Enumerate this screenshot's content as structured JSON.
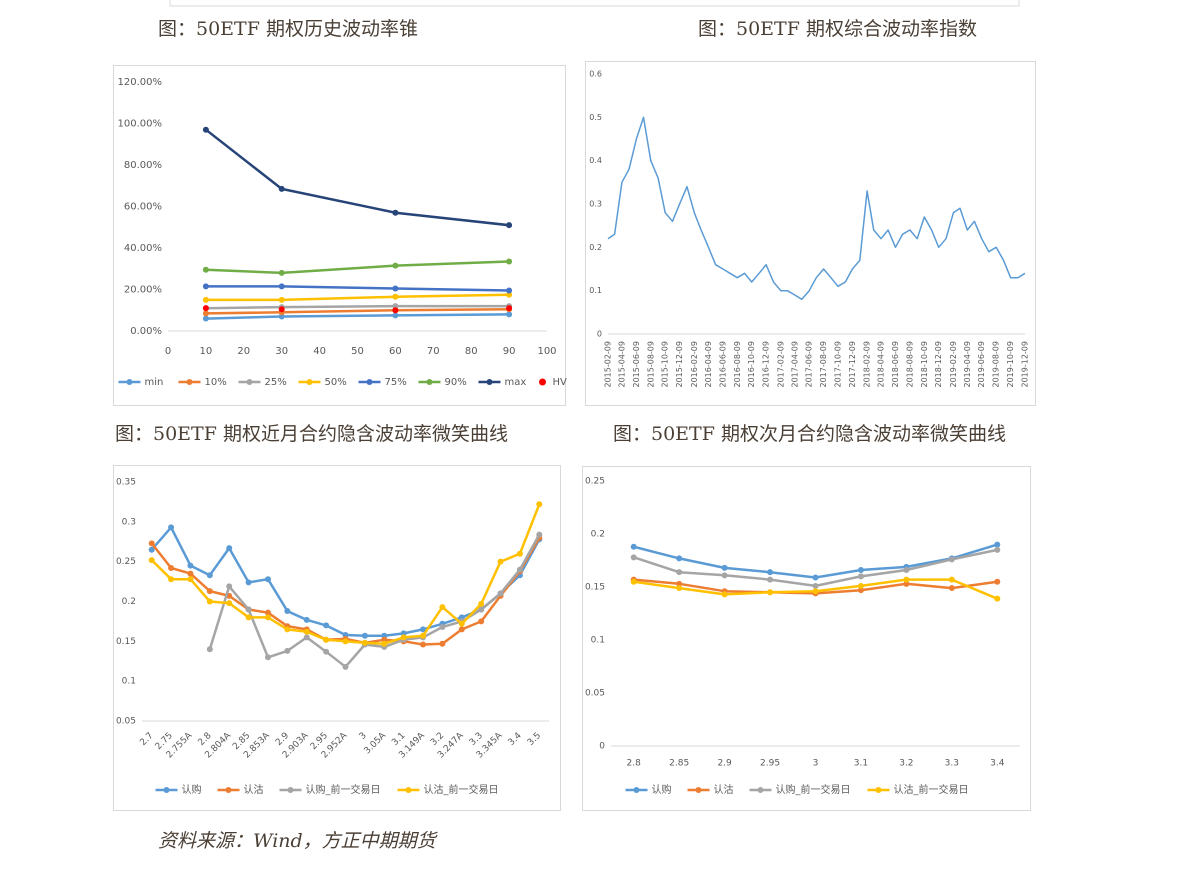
{
  "source": "资料来源：Wind，方正中期期货",
  "chart_data": [
    {
      "type": "line",
      "title": "图：50ETF 期权历史波动率锥",
      "markers": true,
      "x": [
        10,
        30,
        60,
        90
      ],
      "xlim": [
        0,
        100
      ],
      "xticks": [
        0,
        10,
        20,
        30,
        40,
        50,
        60,
        70,
        80,
        90,
        100
      ],
      "ylim": [
        0,
        120
      ],
      "yticks": [
        {
          "value": 0,
          "label": "0.00%"
        },
        {
          "value": 20,
          "label": "20.00%"
        },
        {
          "value": 40,
          "label": "40.00%"
        },
        {
          "value": 60,
          "label": "60.00%"
        },
        {
          "value": 80,
          "label": "80.00%"
        },
        {
          "value": 100,
          "label": "100.00%"
        },
        {
          "value": 120,
          "label": "120.00%"
        }
      ],
      "series": [
        {
          "name": "min",
          "color": "#5b9bd5",
          "values": [
            6,
            7,
            7.5,
            8
          ]
        },
        {
          "name": "10%",
          "color": "#ed7d31",
          "values": [
            8.5,
            9,
            10,
            10.5
          ]
        },
        {
          "name": "25%",
          "color": "#a5a5a5",
          "values": [
            11,
            11.5,
            12,
            12
          ]
        },
        {
          "name": "50%",
          "color": "#ffc000",
          "values": [
            15,
            15,
            16.5,
            17.5
          ]
        },
        {
          "name": "75%",
          "color": "#4472c4",
          "values": [
            21.5,
            21.5,
            20.5,
            19.5
          ]
        },
        {
          "name": "90%",
          "color": "#70ad47",
          "values": [
            29.5,
            28,
            31.5,
            33.5
          ]
        },
        {
          "name": "max",
          "color": "#264478",
          "values": [
            97,
            68.5,
            57,
            51
          ]
        },
        {
          "name": "HV",
          "color": "#ff0000",
          "line": false,
          "values": [
            11,
            10.5,
            10,
            11
          ]
        }
      ]
    },
    {
      "type": "line",
      "title": "图：50ETF 期权综合波动率指数",
      "markers": false,
      "x": [
        "2015-02-09",
        "2015-03-09",
        "2015-04-09",
        "2015-05-09",
        "2015-06-09",
        "2015-07-09",
        "2015-08-09",
        "2015-09-09",
        "2015-10-09",
        "2015-11-09",
        "2015-12-09",
        "2016-01-09",
        "2016-02-09",
        "2016-03-09",
        "2016-04-09",
        "2016-05-09",
        "2016-06-09",
        "2016-07-09",
        "2016-08-09",
        "2016-09-09",
        "2016-10-09",
        "2016-11-09",
        "2016-12-09",
        "2017-01-09",
        "2017-02-09",
        "2017-03-09",
        "2017-04-09",
        "2017-05-09",
        "2017-06-09",
        "2017-07-09",
        "2017-08-09",
        "2017-09-09",
        "2017-10-09",
        "2017-11-09",
        "2017-12-09",
        "2018-01-09",
        "2018-02-09",
        "2018-03-09",
        "2018-04-09",
        "2018-05-09",
        "2018-06-09",
        "2018-07-09",
        "2018-08-09",
        "2018-09-09",
        "2018-10-09",
        "2018-11-09",
        "2018-12-09",
        "2019-01-09",
        "2019-02-09",
        "2019-03-09",
        "2019-04-09",
        "2019-05-09",
        "2019-06-09",
        "2019-07-09",
        "2019-08-09",
        "2019-09-09",
        "2019-10-09",
        "2019-11-09",
        "2019-12-09"
      ],
      "series": [
        {
          "color": "#5b9bd5",
          "values": [
            0.22,
            0.23,
            0.35,
            0.38,
            0.45,
            0.5,
            0.4,
            0.36,
            0.28,
            0.26,
            0.3,
            0.34,
            0.28,
            0.24,
            0.2,
            0.16,
            0.15,
            0.14,
            0.13,
            0.14,
            0.12,
            0.14,
            0.16,
            0.12,
            0.1,
            0.1,
            0.09,
            0.08,
            0.1,
            0.13,
            0.15,
            0.13,
            0.11,
            0.12,
            0.15,
            0.17,
            0.33,
            0.24,
            0.22,
            0.24,
            0.2,
            0.23,
            0.24,
            0.22,
            0.27,
            0.24,
            0.2,
            0.22,
            0.28,
            0.29,
            0.24,
            0.26,
            0.22,
            0.19,
            0.2,
            0.17,
            0.13,
            0.13,
            0.14
          ]
        }
      ],
      "xlim": [
        "2015-02-09",
        "2019-12-09"
      ],
      "xticks": [
        "2015-02-09",
        "2015-04-09",
        "2015-06-09",
        "2015-08-09",
        "2015-10-09",
        "2015-12-09",
        "2016-02-09",
        "2016-04-09",
        "2016-06-09",
        "2016-08-09",
        "2016-10-09",
        "2016-12-09",
        "2017-02-09",
        "2017-04-09",
        "2017-06-09",
        "2017-08-09",
        "2017-10-09",
        "2017-12-09",
        "2018-02-09",
        "2018-04-09",
        "2018-06-09",
        "2018-08-09",
        "2018-10-09",
        "2018-12-09",
        "2019-02-09",
        "2019-04-09",
        "2019-06-09",
        "2019-08-09",
        "2019-10-09",
        "2019-12-09"
      ],
      "ylim": [
        0,
        0.6
      ],
      "yticks": [
        0,
        0.1,
        0.2,
        0.3,
        0.4,
        0.5,
        0.6
      ]
    },
    {
      "type": "line",
      "title": "图：50ETF 期权近月合约隐含波动率微笑曲线",
      "markers": true,
      "categories": [
        "2.7",
        "2.75",
        "2.755A",
        "2.8",
        "2.804A",
        "2.85",
        "2.853A",
        "2.9",
        "2.903A",
        "2.95",
        "2.952A",
        "3",
        "3.05A",
        "3.1",
        "3.149A",
        "3.2",
        "3.247A",
        "3.3",
        "3.345A",
        "3.4",
        "3.5"
      ],
      "ylim": [
        0.05,
        0.35
      ],
      "yticks": [
        0.05,
        0.1,
        0.15,
        0.2,
        0.25,
        0.3,
        0.35
      ],
      "series": [
        {
          "name": "认购",
          "color": "#5b9bd5",
          "values": [
            0.265,
            0.293,
            0.245,
            0.233,
            0.267,
            0.224,
            0.228,
            0.188,
            0.177,
            0.17,
            0.158,
            0.157,
            0.157,
            0.16,
            0.165,
            0.172,
            0.18,
            0.19,
            0.21,
            0.233,
            0.278
          ]
        },
        {
          "name": "认沽",
          "color": "#ed7d31",
          "values": [
            0.273,
            0.242,
            0.235,
            0.213,
            0.207,
            0.19,
            0.186,
            0.169,
            0.165,
            0.152,
            0.153,
            0.148,
            0.152,
            0.15,
            0.146,
            0.147,
            0.165,
            0.175,
            0.207,
            0.238,
            0.28
          ]
        },
        {
          "name": "认购_前一交易日",
          "color": "#a5a5a5",
          "values": [
            null,
            null,
            null,
            0.14,
            0.219,
            0.19,
            0.13,
            0.138,
            0.155,
            0.137,
            0.118,
            0.146,
            0.143,
            0.152,
            0.155,
            0.168,
            0.175,
            0.19,
            0.21,
            0.24,
            0.284
          ]
        },
        {
          "name": "认沽_前一交易日",
          "color": "#ffc000",
          "values": [
            0.252,
            0.228,
            0.228,
            0.2,
            0.198,
            0.18,
            0.18,
            0.165,
            0.162,
            0.152,
            0.15,
            0.148,
            0.147,
            0.155,
            0.157,
            0.193,
            0.172,
            0.197,
            0.25,
            0.26,
            0.322
          ]
        }
      ]
    },
    {
      "type": "line",
      "title": "图：50ETF 期权次月合约隐含波动率微笑曲线",
      "markers": true,
      "categories": [
        "2.8",
        "2.85",
        "2.9",
        "2.95",
        "3",
        "3.1",
        "3.2",
        "3.3",
        "3.4"
      ],
      "ylim": [
        0,
        0.25
      ],
      "yticks": [
        0,
        0.05,
        0.1,
        0.15,
        0.2,
        0.25
      ],
      "series": [
        {
          "name": "认购",
          "color": "#5b9bd5",
          "values": [
            0.188,
            0.177,
            0.168,
            0.164,
            0.159,
            0.166,
            0.169,
            0.177,
            0.19
          ]
        },
        {
          "name": "认沽",
          "color": "#ed7d31",
          "values": [
            0.157,
            0.153,
            0.146,
            0.145,
            0.144,
            0.147,
            0.153,
            0.149,
            0.155
          ]
        },
        {
          "name": "认购_前一交易日",
          "color": "#a5a5a5",
          "values": [
            0.178,
            0.164,
            0.161,
            0.157,
            0.151,
            0.16,
            0.166,
            0.176,
            0.185
          ]
        },
        {
          "name": "认沽_前一交易日",
          "color": "#ffc000",
          "values": [
            0.155,
            0.149,
            0.143,
            0.145,
            0.146,
            0.151,
            0.157,
            0.157,
            0.139
          ]
        }
      ]
    }
  ]
}
